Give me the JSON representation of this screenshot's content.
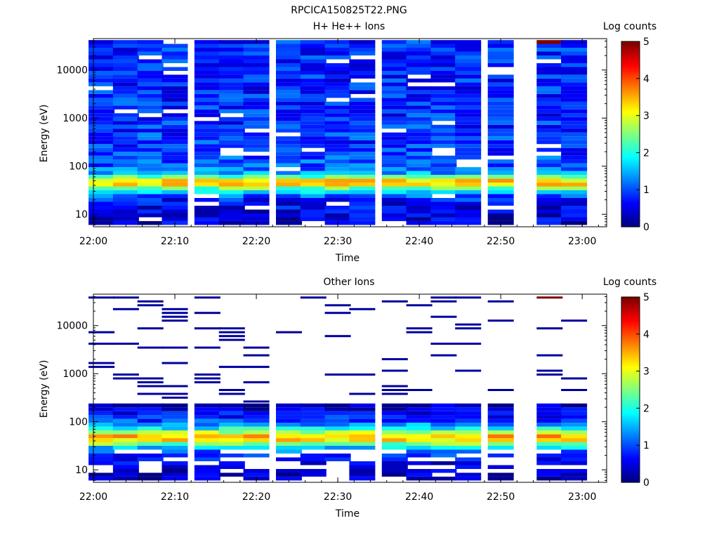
{
  "figure_title": "RPCICA150825T22.PNG",
  "chart_data": [
    {
      "type": "heatmap",
      "title": "H+ He++ Ions",
      "xlabel": "Time",
      "ylabel": "Energy (eV)",
      "colorbar_label": "Log counts",
      "x_ticks": [
        "22:00",
        "22:10",
        "22:20",
        "22:30",
        "22:40",
        "22:50",
        "23:00"
      ],
      "xlim": [
        "22:00",
        "23:03"
      ],
      "y_scale": "log",
      "y_ticks": [
        "10",
        "100",
        "1000",
        "10000"
      ],
      "ylim": [
        5.5,
        45000
      ],
      "colorbar_range": [
        0,
        5
      ],
      "colorbar_ticks": [
        "0",
        "1",
        "2",
        "3",
        "4",
        "5"
      ],
      "colormap": "jet",
      "time_columns": [
        "22:01",
        "22:04",
        "22:07",
        "22:10",
        "22:14",
        "22:17",
        "22:20",
        "22:24",
        "22:27",
        "22:30",
        "22:33",
        "22:37",
        "22:40",
        "22:43",
        "22:46",
        "22:50",
        "22:56",
        "22:59"
      ],
      "band_profile": {
        "energy_eV": [
          8,
          12,
          16,
          22,
          30,
          38,
          46,
          55,
          70,
          100,
          200,
          500,
          1000,
          3000,
          10000,
          30000
        ],
        "typical_log_counts": [
          0.4,
          0.5,
          0.6,
          0.8,
          1.8,
          2.8,
          3.6,
          3.0,
          1.4,
          1.1,
          0.9,
          0.9,
          0.8,
          0.8,
          0.8,
          0.8
        ]
      },
      "notes": "Peak near 40-55 eV around 3-4 log counts; no data near 22:53; saturated value at top of 22:56 column."
    },
    {
      "type": "heatmap",
      "title": "Other Ions",
      "xlabel": "Time",
      "ylabel": "Energy (eV)",
      "colorbar_label": "Log counts",
      "x_ticks": [
        "22:00",
        "22:10",
        "22:20",
        "22:30",
        "22:40",
        "22:50",
        "23:00"
      ],
      "xlim": [
        "22:00",
        "23:03"
      ],
      "y_scale": "log",
      "y_ticks": [
        "10",
        "100",
        "1000",
        "10000"
      ],
      "ylim": [
        5.5,
        45000
      ],
      "colorbar_range": [
        0,
        5
      ],
      "colorbar_ticks": [
        "0",
        "1",
        "2",
        "3",
        "4",
        "5"
      ],
      "colormap": "jet",
      "time_columns": [
        "22:01",
        "22:04",
        "22:07",
        "22:10",
        "22:14",
        "22:17",
        "22:20",
        "22:24",
        "22:27",
        "22:30",
        "22:33",
        "22:37",
        "22:40",
        "22:43",
        "22:46",
        "22:50",
        "22:56",
        "22:59"
      ],
      "band_profile": {
        "energy_eV": [
          8,
          12,
          16,
          22,
          30,
          38,
          46,
          55,
          70,
          100,
          200
        ],
        "typical_log_counts": [
          0.3,
          0.4,
          0.6,
          0.9,
          1.8,
          2.9,
          3.7,
          3.2,
          2.0,
          1.0,
          0.3
        ]
      },
      "notes": "Sparse single-count lines above 200 eV; no data near 22:53; saturated value at top of 22:56 column."
    }
  ]
}
